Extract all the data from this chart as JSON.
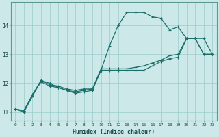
{
  "xlabel": "Humidex (Indice chaleur)",
  "ylabel": "",
  "bg_color": "#cce8e8",
  "line_color": "#1a6e6a",
  "grid_color": "#99cccc",
  "xlim": [
    -0.5,
    23.5
  ],
  "ylim": [
    10.7,
    14.8
  ],
  "yticks": [
    11,
    12,
    13,
    14
  ],
  "xticks": [
    0,
    1,
    2,
    3,
    4,
    5,
    6,
    7,
    8,
    9,
    10,
    11,
    12,
    13,
    14,
    15,
    16,
    17,
    18,
    19,
    20,
    21,
    22,
    23
  ],
  "line1_x": [
    0,
    1,
    2,
    3,
    4,
    5,
    6,
    7,
    8,
    9,
    10,
    11,
    12,
    13,
    14,
    15,
    16,
    17,
    18,
    19,
    20,
    21,
    22,
    23
  ],
  "line1_y": [
    11.1,
    11.0,
    11.55,
    12.1,
    12.0,
    11.85,
    11.75,
    11.65,
    11.7,
    11.75,
    12.45,
    13.3,
    14.0,
    14.45,
    14.45,
    14.45,
    14.3,
    14.25,
    13.85,
    13.95,
    13.55,
    13.55,
    13.0,
    13.0
  ],
  "line2_x": [
    0,
    1,
    2,
    3,
    4,
    5,
    6,
    7,
    8,
    9,
    10,
    11,
    12,
    13,
    14,
    15,
    16,
    17,
    18,
    19,
    20,
    21,
    22,
    23
  ],
  "line2_y": [
    11.1,
    11.05,
    11.6,
    12.05,
    11.9,
    11.85,
    11.75,
    11.7,
    11.75,
    11.8,
    12.45,
    12.45,
    12.45,
    12.45,
    12.45,
    12.45,
    12.6,
    12.75,
    12.85,
    12.9,
    13.55,
    13.55,
    13.0,
    13.0
  ],
  "line3_x": [
    0,
    1,
    2,
    3,
    4,
    5,
    6,
    7,
    8,
    9,
    10,
    11,
    12,
    13,
    14,
    15,
    16,
    17,
    18,
    19,
    20,
    21,
    22,
    23
  ],
  "line3_y": [
    11.1,
    11.05,
    11.6,
    12.1,
    11.95,
    11.9,
    11.8,
    11.75,
    11.8,
    11.8,
    12.5,
    12.5,
    12.5,
    12.5,
    12.55,
    12.6,
    12.7,
    12.8,
    12.95,
    13.0,
    13.55,
    13.55,
    13.55,
    13.0
  ]
}
